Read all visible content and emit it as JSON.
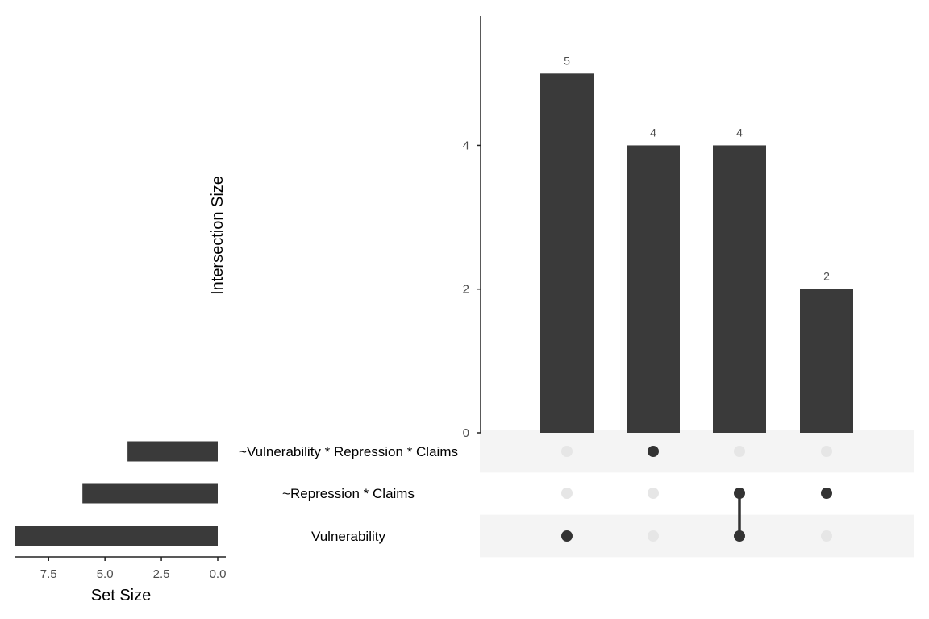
{
  "chart_data": {
    "type": "bar",
    "subtype": "upset",
    "colors": {
      "bar": "#3a3a3a",
      "dot_active": "#333333",
      "dot_inactive": "#e6e6e6",
      "stripe": "#f4f4f4",
      "axis": "#222222"
    },
    "intersections": {
      "ylabel": "Intersection Size",
      "ylim": [
        0,
        5.8
      ],
      "yticks": [
        0,
        2,
        4
      ],
      "values": [
        5,
        4,
        4,
        2
      ],
      "data_labels": [
        "5",
        "4",
        "4",
        "2"
      ],
      "memberships": [
        [
          "Vulnerability"
        ],
        [
          "~Vulnerability * Repression * Claims"
        ],
        [
          "~Repression * Claims",
          "Vulnerability"
        ],
        [
          "~Repression * Claims"
        ]
      ]
    },
    "sets": {
      "xlabel": "Set Size",
      "xlim": [
        9.5,
        0
      ],
      "xticks": [
        7.5,
        5.0,
        2.5,
        0.0
      ],
      "xtick_labels": [
        "7.5",
        "5.0",
        "2.5",
        "0.0"
      ],
      "names": [
        "~Vulnerability * Repression * Claims",
        "~Repression * Claims",
        "Vulnerability"
      ],
      "values": [
        4,
        6,
        9
      ]
    }
  }
}
